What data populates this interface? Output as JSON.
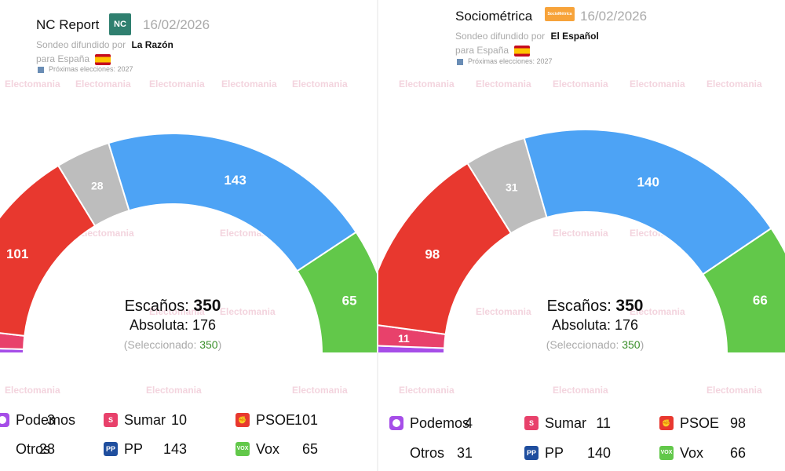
{
  "watermark": "Electomania",
  "center": {
    "seats_label": "Escaños:",
    "absolute_label": "Absoluta:",
    "selected_label": "(Seleccionado:",
    "selected_close": ")"
  },
  "colors": {
    "podemos": "#a64ee8",
    "sumar": "#e8416b",
    "psoe": "#e8382f",
    "otros": "#bdbdbd",
    "pp": "#4da3f5",
    "vox": "#62c84a"
  },
  "polls": [
    {
      "pollster": "NC Report",
      "logo_text": "NC",
      "date": "16/02/2026",
      "source_prefix": "Sondeo difundido por",
      "source": "La Razón",
      "region": "para España",
      "next_elections": "Próximas elecciones: 2027",
      "seats_total": "350",
      "absolute": "176",
      "selected": "350",
      "legend": [
        {
          "name": "Podemos",
          "value": "3",
          "icon": "circle"
        },
        {
          "name": "Sumar",
          "value": "10",
          "icon": "sumar"
        },
        {
          "name": "PSOE",
          "value": "101",
          "icon": "psoe"
        },
        {
          "name": "Otros",
          "value": "28",
          "icon": "none"
        },
        {
          "name": "PP",
          "value": "143",
          "icon": "pp"
        },
        {
          "name": "Vox",
          "value": "65",
          "icon": "vox"
        }
      ]
    },
    {
      "pollster": "Sociométrica",
      "logo_text": "SocioMétrica",
      "date": "16/02/2026",
      "source_prefix": "Sondeo difundido por",
      "source": "El Español",
      "region": "para España",
      "next_elections": "Próximas elecciones: 2027",
      "seats_total": "350",
      "absolute": "176",
      "selected": "350",
      "legend": [
        {
          "name": "Podemos",
          "value": "4",
          "icon": "circle"
        },
        {
          "name": "Sumar",
          "value": "11",
          "icon": "sumar"
        },
        {
          "name": "PSOE",
          "value": "98",
          "icon": "psoe"
        },
        {
          "name": "Otros",
          "value": "31",
          "icon": "none"
        },
        {
          "name": "PP",
          "value": "140",
          "icon": "pp"
        },
        {
          "name": "Vox",
          "value": "66",
          "icon": "vox"
        }
      ]
    }
  ],
  "chart_data": [
    {
      "type": "pie",
      "title": "NC Report",
      "categories": [
        "Podemos",
        "Sumar",
        "PSOE",
        "Otros",
        "PP",
        "Vox"
      ],
      "values": [
        3,
        10,
        101,
        28,
        143,
        65
      ],
      "total": 350,
      "slice_labels": [
        "",
        "",
        "101",
        "28",
        "143",
        "65"
      ]
    },
    {
      "type": "pie",
      "title": "Sociométrica",
      "categories": [
        "Podemos",
        "Sumar",
        "PSOE",
        "Otros",
        "PP",
        "Vox"
      ],
      "values": [
        4,
        11,
        98,
        31,
        140,
        66
      ],
      "total": 350,
      "slice_labels": [
        "",
        "11",
        "98",
        "31",
        "140",
        "66"
      ]
    }
  ]
}
